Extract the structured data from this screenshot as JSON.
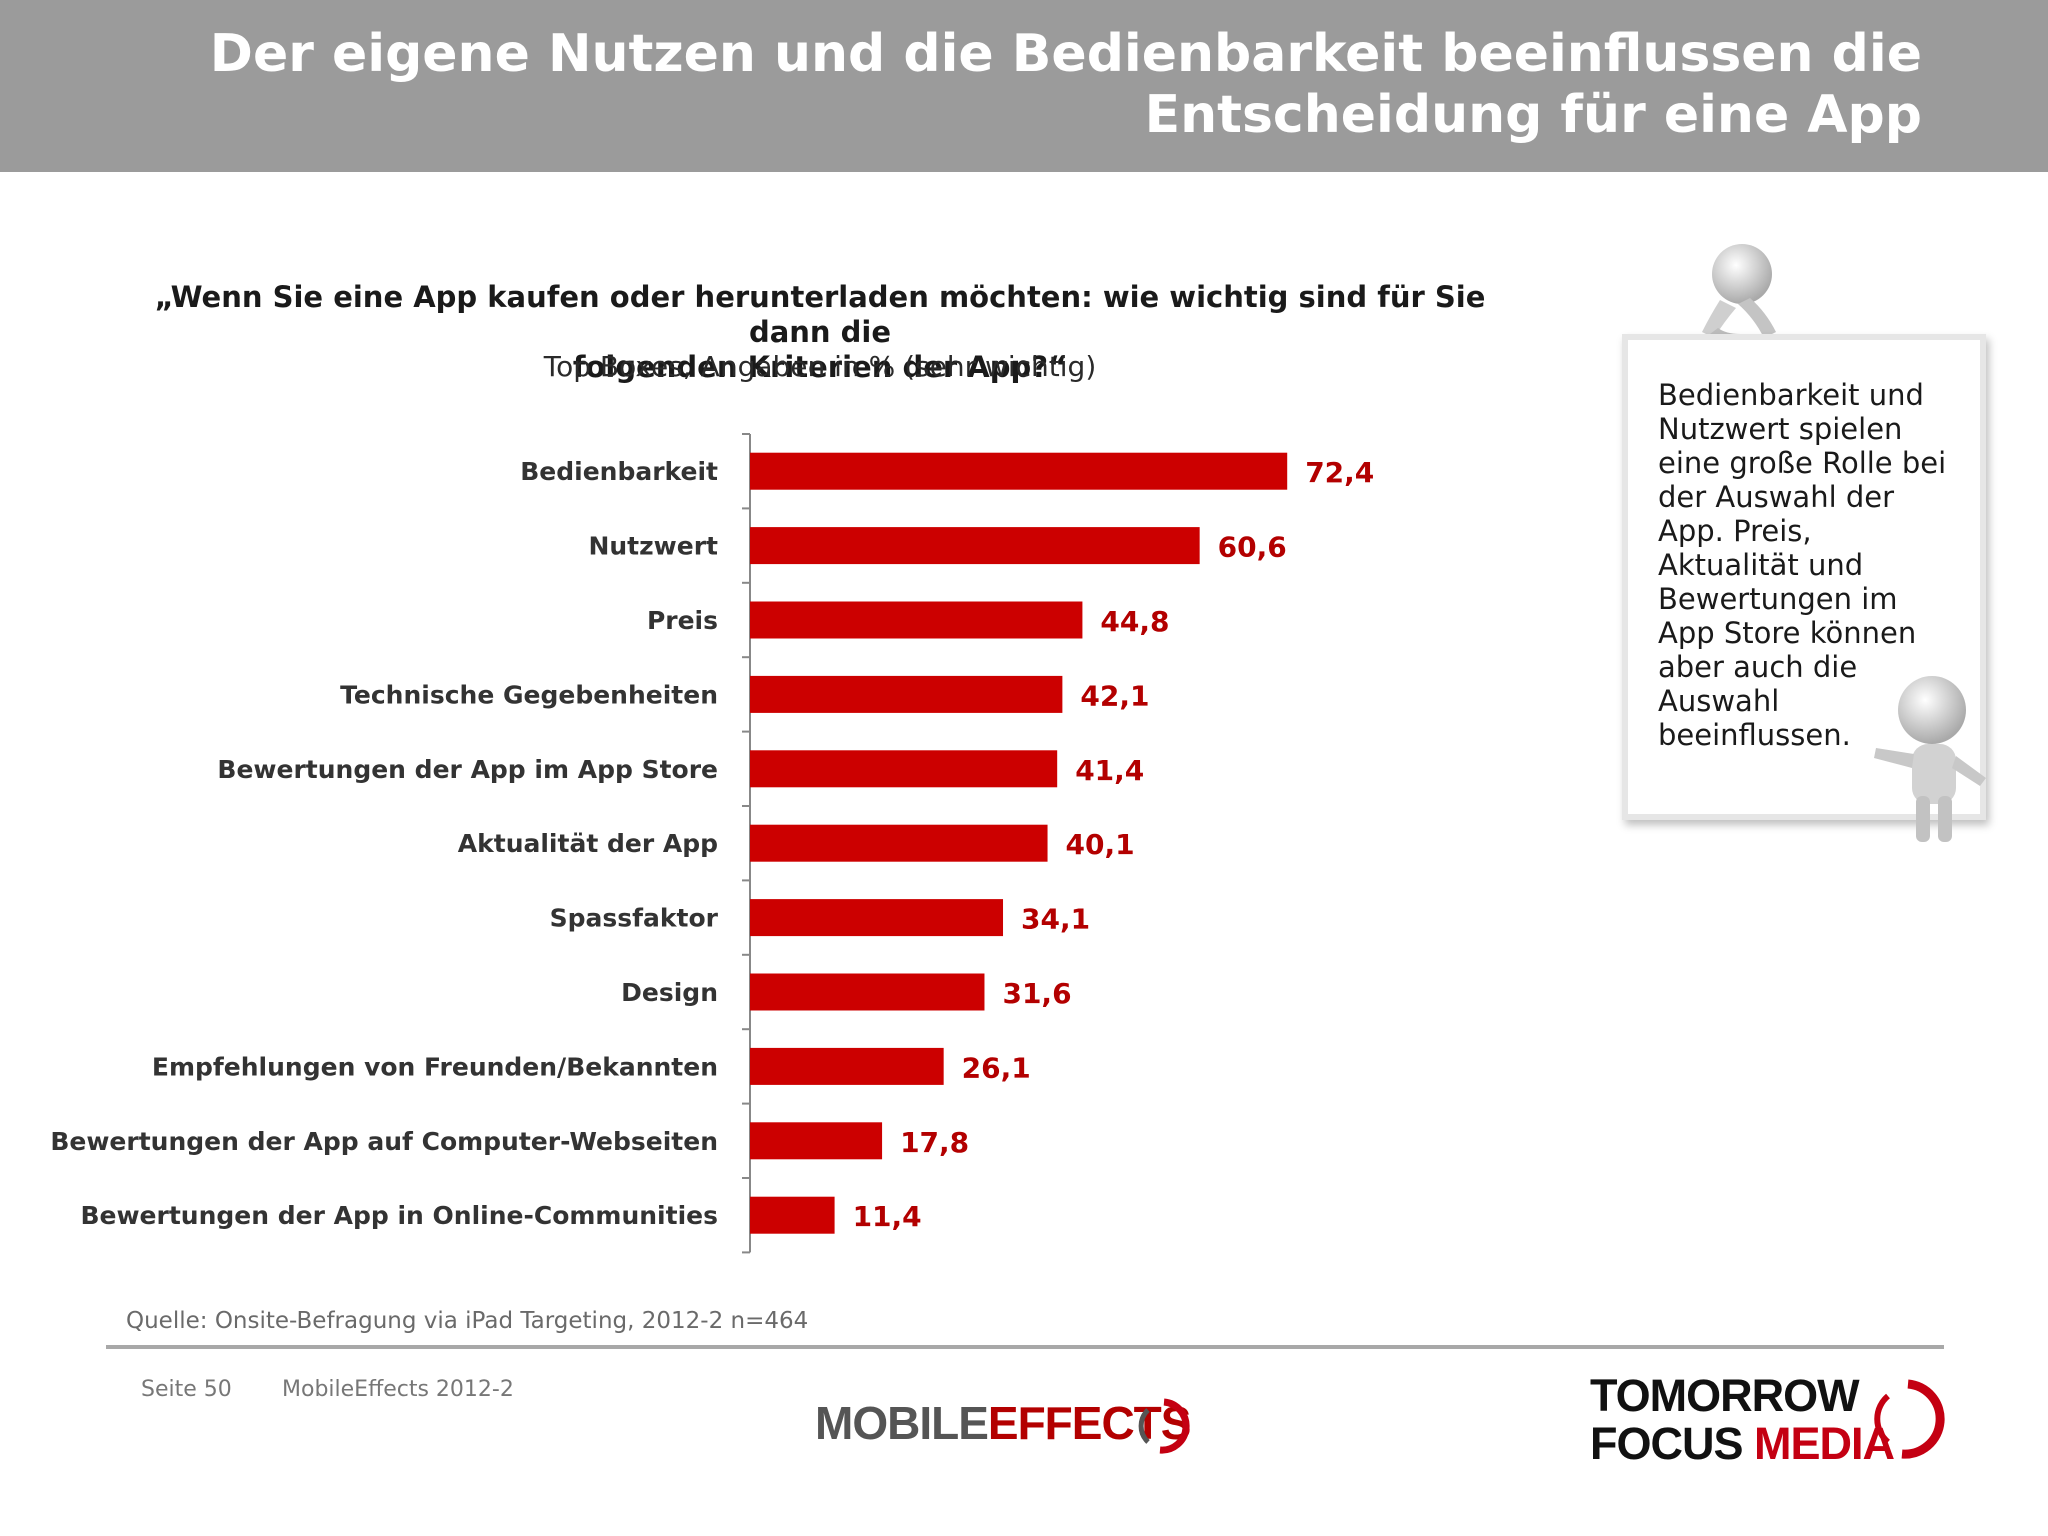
{
  "header": {
    "title_line1": "Der eigene Nutzen und die Bedienbarkeit beeinflussen die",
    "title_line2": "Entscheidung für eine App"
  },
  "question": {
    "line1": "„Wenn Sie eine App kaufen oder herunterladen möchten: wie wichtig sind für Sie dann die",
    "line2": "folgenden Kriterien der App?“",
    "subtitle": "Top Boxes, Angaben in % (sehr wichtig)"
  },
  "chart_data": {
    "type": "bar",
    "orientation": "horizontal",
    "categories": [
      "Bedienbarkeit",
      "Nutzwert",
      "Preis",
      "Technische Gegebenheiten",
      "Bewertungen der App im App Store",
      "Aktualität der App",
      "Spassfaktor",
      "Design",
      "Empfehlungen von Freunden/Bekannten",
      "Bewertungen der App auf Computer-Webseiten",
      "Bewertungen der App in Online-Communities"
    ],
    "values": [
      72.4,
      60.6,
      44.8,
      42.1,
      41.4,
      40.1,
      34.1,
      31.6,
      26.1,
      17.8,
      11.4
    ],
    "value_labels": [
      "72,4",
      "60,6",
      "44,8",
      "42,1",
      "41,4",
      "40,1",
      "34,1",
      "31,6",
      "26,1",
      "17,8",
      "11,4"
    ],
    "xlim": [
      0,
      100
    ],
    "grid": false,
    "bar_color": "#cc0000",
    "label_color": "#b30000"
  },
  "callout": {
    "text": "Bedienbarkeit und Nutzwert spielen eine große Rolle bei der Auswahl der App. Preis, Aktualität und Bewertungen im App Store können aber auch die Auswahl beeinflussen."
  },
  "footer": {
    "source": "Quelle: Onsite-Befragung via iPad Targeting, 2012-2 n=464",
    "page": "Seite 50",
    "study": "MobileEffects 2012-2",
    "logo_mobile": "MOBILE",
    "logo_effects": "EFFECTS",
    "logo_tomorrow": "TOMORROW",
    "logo_focus": "FOCUS",
    "logo_media": "MEDIA"
  }
}
